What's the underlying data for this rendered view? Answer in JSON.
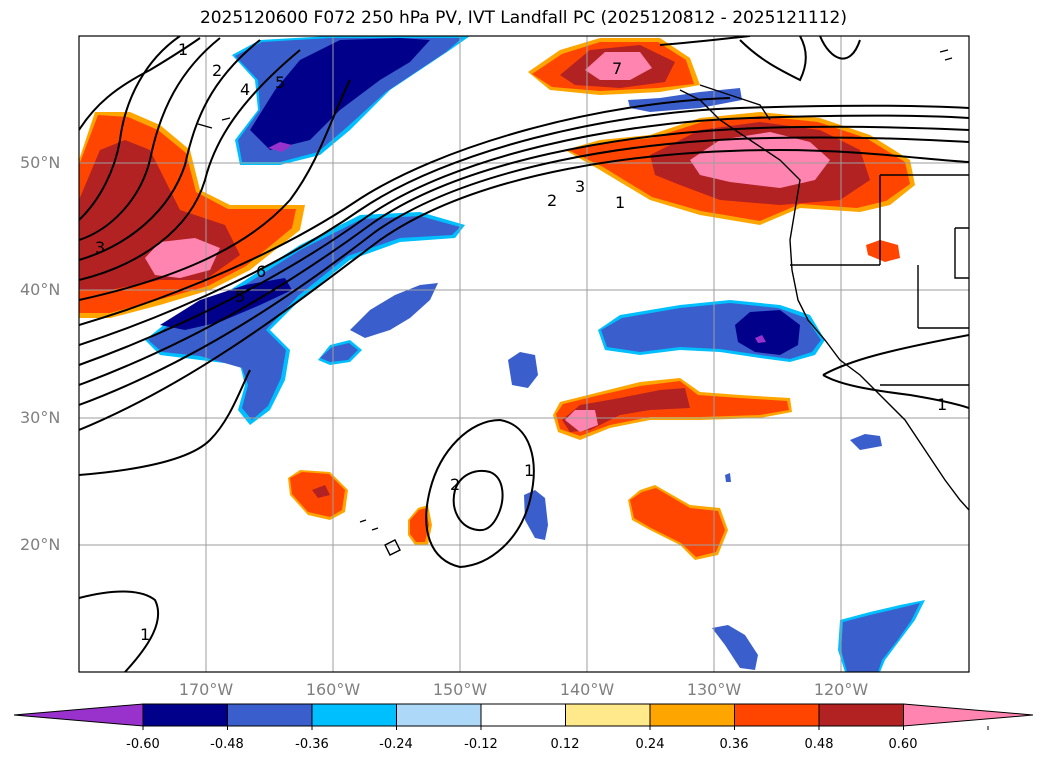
{
  "title": "2025120600 F072 250 hPa PV, IVT Landfall PC (2025120812 - 2025121112)",
  "lat_ticks": [
    "50°N",
    "40°N",
    "30°N",
    "20°N"
  ],
  "lon_ticks": [
    "170°W",
    "160°W",
    "150°W",
    "140°W",
    "130°W",
    "120°W"
  ],
  "colorbar": {
    "ticks": [
      "-0.60",
      "-0.48",
      "-0.36",
      "-0.24",
      "-0.12",
      "0.12",
      "0.24",
      "0.36",
      "0.48",
      "0.60"
    ],
    "colors": [
      "#9932cc",
      "#00008b",
      "#3a5fcd",
      "#00bfff",
      "#add8f8",
      "#ffffff",
      "#ffe98a",
      "#ffa500",
      "#ff4500",
      "#b22222",
      "#ff85b0"
    ]
  },
  "contour_labels": [
    "1",
    "2",
    "3",
    "4",
    "5",
    "6",
    "7"
  ],
  "map_extent": {
    "lon_min": -180,
    "lon_max": -110,
    "lat_min": 10,
    "lat_max": 60
  }
}
